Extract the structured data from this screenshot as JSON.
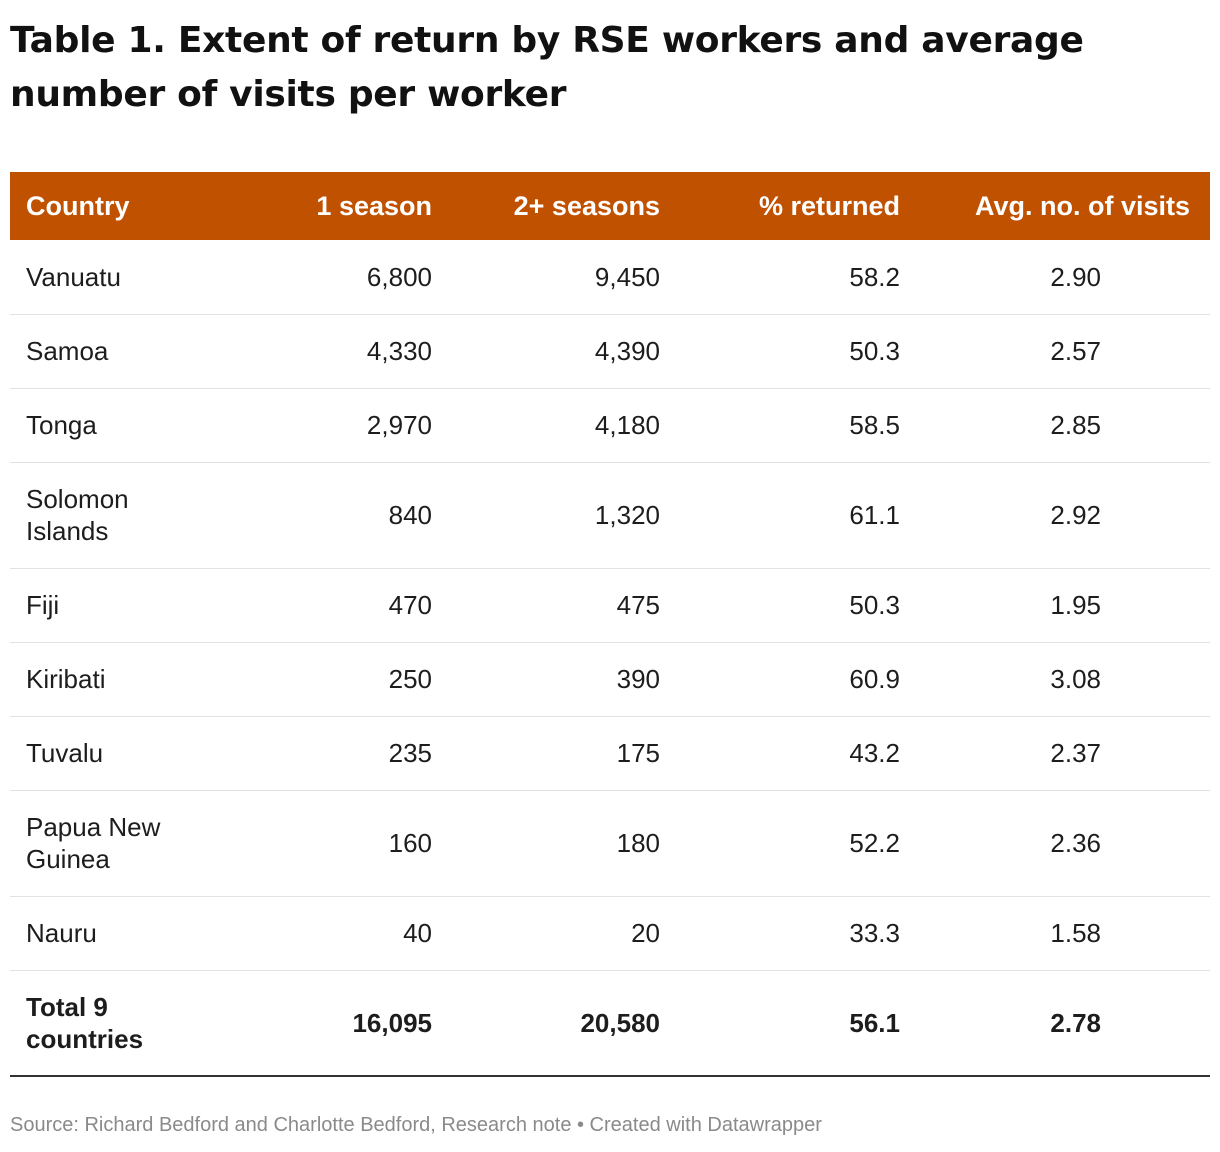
{
  "title": "Table 1. Extent of return by RSE workers and average number of visits per worker",
  "colors": {
    "header_background": "#c05100",
    "header_text": "#ffffff",
    "text": "#1d1d1d",
    "source_text": "#8a8a8a",
    "row_divider": "#e3e3e3"
  },
  "chart_data": {
    "type": "table",
    "columns": [
      "Country",
      "1 season",
      "2+ seasons",
      "% returned",
      "Avg. no. of visits"
    ],
    "rows": [
      {
        "country": "Vanuatu",
        "one_season": "6,800",
        "two_plus_seasons": "9,450",
        "pct_returned": "58.2",
        "avg_visits": "2.90"
      },
      {
        "country": "Samoa",
        "one_season": "4,330",
        "two_plus_seasons": "4,390",
        "pct_returned": "50.3",
        "avg_visits": "2.57"
      },
      {
        "country": "Tonga",
        "one_season": "2,970",
        "two_plus_seasons": "4,180",
        "pct_returned": "58.5",
        "avg_visits": "2.85"
      },
      {
        "country": "Solomon Islands",
        "one_season": "840",
        "two_plus_seasons": "1,320",
        "pct_returned": "61.1",
        "avg_visits": "2.92"
      },
      {
        "country": "Fiji",
        "one_season": "470",
        "two_plus_seasons": "475",
        "pct_returned": "50.3",
        "avg_visits": "1.95"
      },
      {
        "country": "Kiribati",
        "one_season": "250",
        "two_plus_seasons": "390",
        "pct_returned": "60.9",
        "avg_visits": "3.08"
      },
      {
        "country": "Tuvalu",
        "one_season": "235",
        "two_plus_seasons": "175",
        "pct_returned": "43.2",
        "avg_visits": "2.37"
      },
      {
        "country": "Papua New Guinea",
        "one_season": "160",
        "two_plus_seasons": "180",
        "pct_returned": "52.2",
        "avg_visits": "2.36"
      },
      {
        "country": "Nauru",
        "one_season": "40",
        "two_plus_seasons": "20",
        "pct_returned": "33.3",
        "avg_visits": "1.58"
      }
    ],
    "total": {
      "country": "Total 9 countries",
      "one_season": "16,095",
      "two_plus_seasons": "20,580",
      "pct_returned": "56.1",
      "avg_visits": "2.78"
    }
  },
  "source": "Source: Richard Bedford and Charlotte Bedford, Research note • Created with Datawrapper"
}
